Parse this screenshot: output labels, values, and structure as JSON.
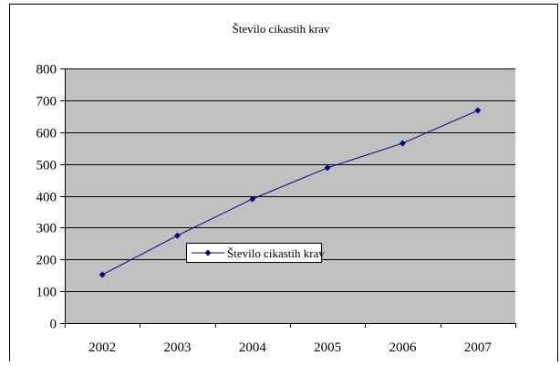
{
  "chart_data": {
    "type": "line",
    "title": "Število cikastih krav",
    "xlabel": "",
    "ylabel": "",
    "categories": [
      "2002",
      "2003",
      "2004",
      "2005",
      "2006",
      "2007"
    ],
    "series": [
      {
        "name": "Število cikastih krav",
        "values": [
          152,
          275,
          390,
          488,
          565,
          668
        ]
      }
    ],
    "ylim": [
      0,
      800
    ],
    "yticks": [
      "0",
      "100",
      "200",
      "300",
      "400",
      "500",
      "600",
      "700",
      "800"
    ],
    "grid": true,
    "legend": "inside-center-left",
    "colors": {
      "plot_background": "#c0c0c0",
      "series": "#000080",
      "gridline": "#000000"
    }
  }
}
